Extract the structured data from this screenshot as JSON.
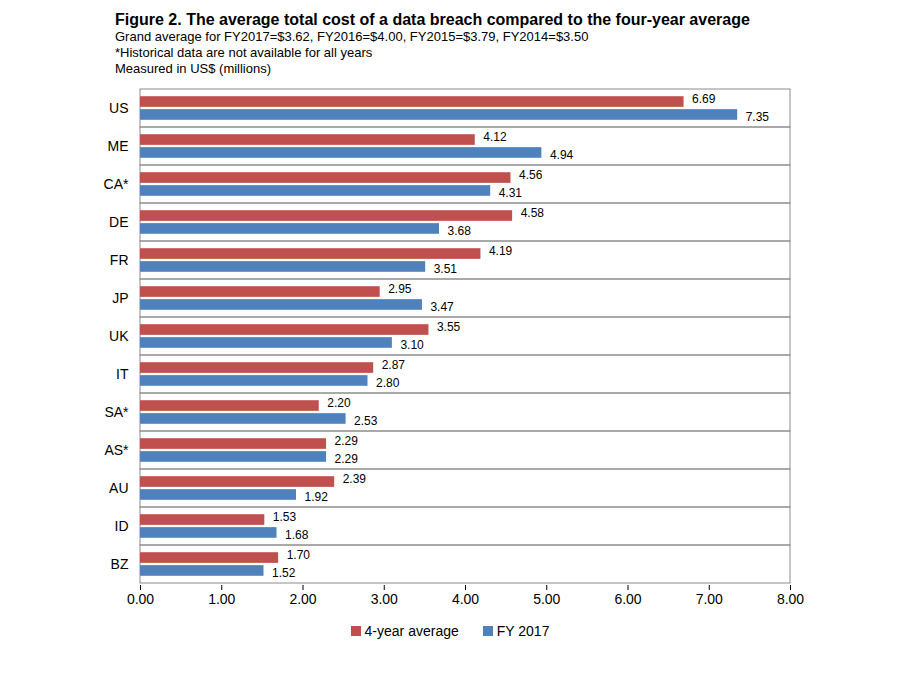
{
  "chart_data": {
    "type": "bar",
    "orientation": "horizontal",
    "title": "Figure 2. The average total cost of a data breach compared to the four-year average",
    "subtitle": [
      "Grand average for FY2017=$3.62, FY2016=$4.00, FY2015=$3.79, FY2014=$3.50",
      "*Historical data are not available for all years",
      "Measured in US$ (millions)"
    ],
    "categories": [
      "US",
      "ME",
      "CA*",
      "DE",
      "FR",
      "JP",
      "UK",
      "IT",
      "SA*",
      "AS*",
      "AU",
      "ID",
      "BZ"
    ],
    "series": [
      {
        "name": "4-year average",
        "color": "#c0504d",
        "values": [
          6.69,
          4.12,
          4.56,
          4.58,
          4.19,
          2.95,
          3.55,
          2.87,
          2.2,
          2.29,
          2.39,
          1.53,
          1.7
        ],
        "value_labels": [
          "6.69",
          "4.12",
          "4.56",
          "4.58",
          "4.19",
          "2.95",
          "3.55",
          "2.87",
          "2.20",
          "2.29",
          "2.39",
          "1.53",
          "1.70"
        ]
      },
      {
        "name": "FY 2017",
        "color": "#4f81bd",
        "values": [
          7.35,
          4.94,
          4.31,
          3.68,
          3.51,
          3.47,
          3.1,
          2.8,
          2.53,
          2.29,
          1.92,
          1.68,
          1.52
        ],
        "value_labels": [
          "7.35",
          "4.94",
          "4.31",
          "3.68",
          "3.51",
          "3.47",
          "3.10",
          "2.80",
          "2.53",
          "2.29",
          "1.92",
          "1.68",
          "1.52"
        ]
      }
    ],
    "xlim": [
      0,
      8
    ],
    "xticks": [
      {
        "value": 0,
        "label": "0.00"
      },
      {
        "value": 1,
        "label": "1.00"
      },
      {
        "value": 2,
        "label": "2.00"
      },
      {
        "value": 3,
        "label": "3.00"
      },
      {
        "value": 4,
        "label": "4.00"
      },
      {
        "value": 5,
        "label": "5.00"
      },
      {
        "value": 6,
        "label": "6.00"
      },
      {
        "value": 7,
        "label": "7.00"
      },
      {
        "value": 8,
        "label": "8.00"
      }
    ],
    "data_labels": true,
    "legend": "bottom",
    "grid": false
  }
}
